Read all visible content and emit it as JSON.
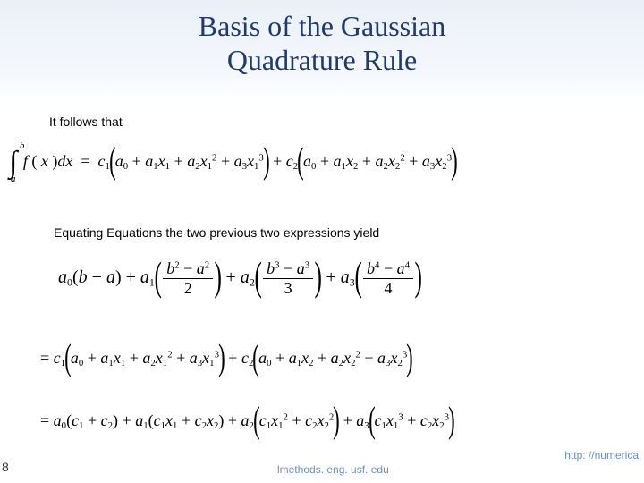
{
  "colors": {
    "title": "#1f3a6e",
    "text": "#000000",
    "link": "#6b8fc9",
    "header_grad_top": "#eaf0f8",
    "header_grad_bot": "#ffffff"
  },
  "fonts": {
    "title_family": "Georgia, 'Times New Roman', serif",
    "title_size_pt": 24,
    "body_family": "Verdana, Geneva, sans-serif",
    "body_size_pt": 11,
    "math_family": "'Times New Roman', Times, serif"
  },
  "title_line1": "Basis of the Gaussian",
  "title_line2": "Quadrature Rule",
  "text_follows": "It follows that",
  "text_equating": "Equating Equations the two previous two expressions yield",
  "page_number": "8",
  "footer_url_part1": "http: //numerica",
  "footer_url_part2": "lmethods. eng. usf. edu",
  "math": {
    "eq1": {
      "integral_lower": "a",
      "integral_upper": "b",
      "integrand": "f ( x )dx",
      "rhs_terms": [
        {
          "coef": "c",
          "coef_sub": "1",
          "poly_var": "x",
          "poly_sub": "1",
          "a_subs": [
            "0",
            "1",
            "2",
            "3"
          ],
          "a_pows": [
            "",
            "",
            "2",
            "3"
          ]
        },
        {
          "coef": "c",
          "coef_sub": "2",
          "poly_var": "x",
          "poly_sub": "2",
          "a_subs": [
            "0",
            "1",
            "2",
            "3"
          ],
          "a_pows": [
            "",
            "",
            "2",
            "3"
          ]
        }
      ]
    },
    "eq2_terms": [
      {
        "a_sub": "0",
        "frac": null,
        "plain": "(b − a)"
      },
      {
        "a_sub": "1",
        "frac": {
          "num": "b² − a²",
          "den": "2"
        }
      },
      {
        "a_sub": "2",
        "frac": {
          "num": "b³ − a³",
          "den": "3"
        }
      },
      {
        "a_sub": "3",
        "frac": {
          "num": "b⁴ − a⁴",
          "den": "4"
        }
      }
    ],
    "eq3_rhs_same_as_eq1": true,
    "eq4_terms": [
      {
        "a_sub": "0",
        "inner": "c₁ + c₂"
      },
      {
        "a_sub": "1",
        "inner": "c₁x₁ + c₂x₂"
      },
      {
        "a_sub": "2",
        "inner": "c₁x₁² + c₂x₂²"
      },
      {
        "a_sub": "3",
        "inner": "c₁x₁³ + c₂x₂³"
      }
    ]
  }
}
